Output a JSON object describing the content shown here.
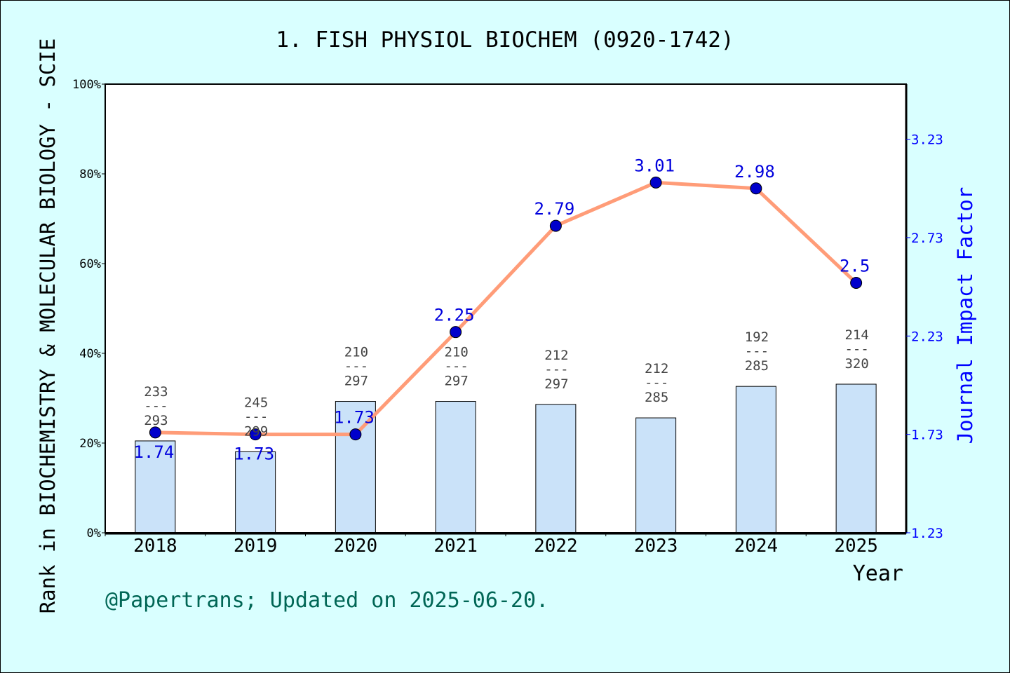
{
  "chart_data": {
    "type": "bar+line",
    "title": "1. FISH PHYSIOL BIOCHEM (0920-1742)",
    "xlabel": "Year",
    "ylabel_left": "Rank in BIOCHEMISTRY & MOLECULAR BIOLOGY - SCIE",
    "ylabel_right": "Journal Impact Factor",
    "footer": "@Papertrans; Updated on 2025-06-20.",
    "categories": [
      "2018",
      "2019",
      "2020",
      "2021",
      "2022",
      "2023",
      "2024",
      "2025"
    ],
    "left_axis": {
      "range": [
        0,
        100
      ],
      "ticks": [
        0,
        20,
        40,
        60,
        80,
        100
      ],
      "tick_suffix": "%"
    },
    "right_axis": {
      "range": [
        1.23,
        3.51
      ],
      "ticks": [
        "1.23",
        "1.73",
        "2.23",
        "2.73",
        "3.23"
      ]
    },
    "bars": {
      "rank": [
        233,
        245,
        210,
        210,
        212,
        212,
        192,
        214
      ],
      "total": [
        293,
        299,
        297,
        297,
        297,
        285,
        285,
        320
      ],
      "color": "#c5e0f8"
    },
    "line": {
      "values": [
        1.74,
        1.73,
        1.73,
        2.25,
        2.79,
        3.01,
        2.98,
        2.5
      ],
      "labels": [
        "1.74",
        "1.73",
        "1.73",
        "2.25",
        "2.79",
        "3.01",
        "2.98",
        "2.5"
      ],
      "line_color": "#ff9c78",
      "marker_color": "#0000cc"
    },
    "colors": {
      "background": "#d9ffff",
      "plot_background": "#ffffff",
      "right_axis": "#0000ff",
      "footer": "#006655"
    }
  }
}
